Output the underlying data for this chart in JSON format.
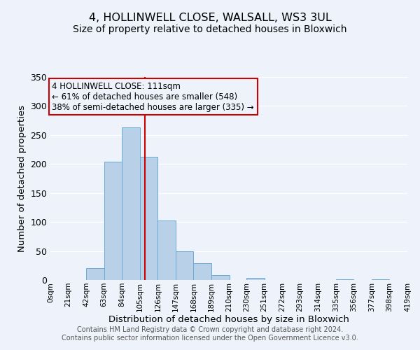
{
  "title": "4, HOLLINWELL CLOSE, WALSALL, WS3 3UL",
  "subtitle": "Size of property relative to detached houses in Bloxwich",
  "xlabel": "Distribution of detached houses by size in Bloxwich",
  "ylabel": "Number of detached properties",
  "bar_color": "#b8d0e8",
  "bar_edge_color": "#6aaad4",
  "bin_edges": [
    0,
    21,
    42,
    63,
    84,
    105,
    126,
    147,
    168,
    189,
    210,
    230,
    251,
    272,
    293,
    314,
    335,
    356,
    377,
    398,
    419
  ],
  "bin_counts": [
    0,
    0,
    20,
    204,
    263,
    212,
    103,
    50,
    29,
    8,
    0,
    4,
    0,
    0,
    0,
    0,
    1,
    0,
    1,
    0
  ],
  "property_line_x": 111,
  "property_line_color": "#cc0000",
  "annotation_title": "4 HOLLINWELL CLOSE: 111sqm",
  "annotation_line1": "← 61% of detached houses are smaller (548)",
  "annotation_line2": "38% of semi-detached houses are larger (335) →",
  "annotation_box_color": "#cc0000",
  "ylim": [
    0,
    350
  ],
  "tick_labels": [
    "0sqm",
    "21sqm",
    "42sqm",
    "63sqm",
    "84sqm",
    "105sqm",
    "126sqm",
    "147sqm",
    "168sqm",
    "189sqm",
    "210sqm",
    "230sqm",
    "251sqm",
    "272sqm",
    "293sqm",
    "314sqm",
    "335sqm",
    "356sqm",
    "377sqm",
    "398sqm",
    "419sqm"
  ],
  "footer1": "Contains HM Land Registry data © Crown copyright and database right 2024.",
  "footer2": "Contains public sector information licensed under the Open Government Licence v3.0.",
  "background_color": "#edf2fb",
  "plot_bg_color": "#edf2fb",
  "grid_color": "#ffffff",
  "title_fontsize": 11.5,
  "subtitle_fontsize": 10,
  "axis_label_fontsize": 9.5,
  "tick_fontsize": 7.5,
  "annotation_fontsize": 8.5,
  "footer_fontsize": 7
}
